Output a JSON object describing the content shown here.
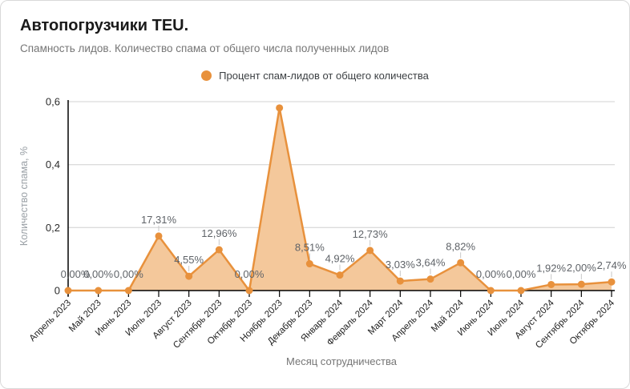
{
  "card": {
    "title": "Автопогрузчики TEU.",
    "subtitle": "Спамность лидов. Количество спама от общего числа полученных лидов"
  },
  "legend": {
    "label": "Процент спам-лидов от общего количества"
  },
  "chart_data": {
    "type": "area",
    "title": "Автопогрузчики TEU.",
    "subtitle": "Спамность лидов. Количество спама от общего числа полученных лидов",
    "series_name": "Процент спам-лидов от общего количества",
    "xlabel": "Месяц сотрудничества",
    "ylabel": "Количество спама, %",
    "ylim": [
      0,
      0.6
    ],
    "ytick_labels": [
      "0",
      "0,2",
      "0,4",
      "0,6"
    ],
    "ytick_values": [
      0,
      0.2,
      0.4,
      0.6
    ],
    "grid": true,
    "legend_position": "top-center",
    "series_color": "#e8913c",
    "fill_color": "#f4c89b",
    "categories": [
      "Апрель 2023",
      "Май 2023",
      "Июнь 2023",
      "Июль 2023",
      "Август 2023",
      "Сентябрь 2023",
      "Октябрь 2023",
      "Ноябрь 2023",
      "Декабрь 2023",
      "Январь 2024",
      "Февраль 2024",
      "Март 2024",
      "Апрель 2024",
      "Май 2024",
      "Июнь 2024",
      "Июль 2024",
      "Август 2024",
      "Сентябрь 2024",
      "Октябрь 2024"
    ],
    "values": [
      0,
      0,
      0,
      0.1731,
      0.0455,
      0.1296,
      0,
      0.58,
      0.0851,
      0.0492,
      0.1273,
      0.0303,
      0.0364,
      0.0882,
      0,
      0,
      0.0192,
      0.02,
      0.0274
    ],
    "point_labels": [
      "0,00%",
      "0,00%",
      "0,00%",
      "17,31%",
      "4,55%",
      "12,96%",
      "0,00%",
      "",
      "8,51%",
      "4,92%",
      "12,73%",
      "3,03%",
      "3,64%",
      "8,82%",
      "0,00%",
      "0,00%",
      "1,92%",
      "2,00%",
      "2,74%"
    ]
  }
}
